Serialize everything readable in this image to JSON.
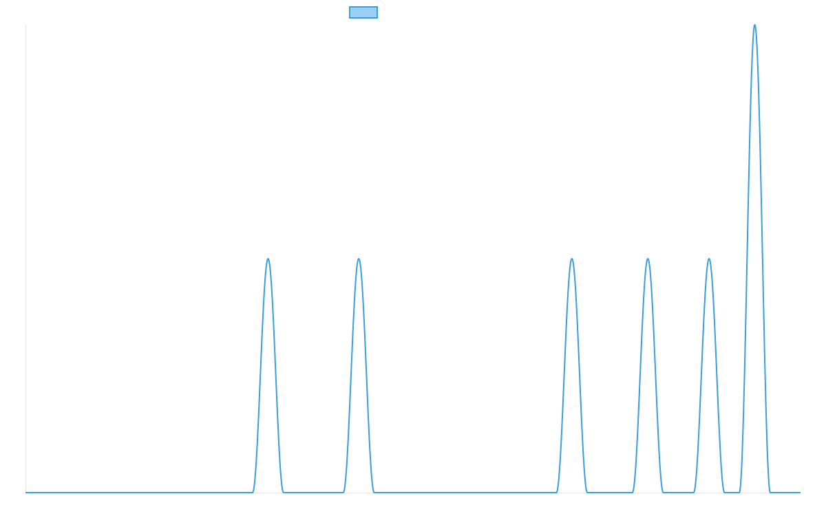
{
  "chart_data": {
    "type": "line",
    "title": "",
    "xlabel": "",
    "ylabel": "",
    "legend": {
      "placement": "top-center",
      "entries": [
        {
          "label": ""
        }
      ]
    },
    "grid": false,
    "xlim": [
      0,
      100
    ],
    "ylim": [
      0,
      2
    ],
    "colors": {
      "line": "#369fdc",
      "swatch_fill": "#9ad0f5",
      "axis": "#e6e6e6"
    },
    "peaks": [
      {
        "center": 31.3,
        "halfwidth": 2.0,
        "height": 1
      },
      {
        "center": 43.0,
        "halfwidth": 2.0,
        "height": 1
      },
      {
        "center": 70.5,
        "halfwidth": 2.0,
        "height": 1
      },
      {
        "center": 80.3,
        "halfwidth": 2.0,
        "height": 1
      },
      {
        "center": 88.2,
        "halfwidth": 2.0,
        "height": 1
      },
      {
        "center": 94.1,
        "halfwidth": 2.0,
        "height": 2
      }
    ]
  }
}
